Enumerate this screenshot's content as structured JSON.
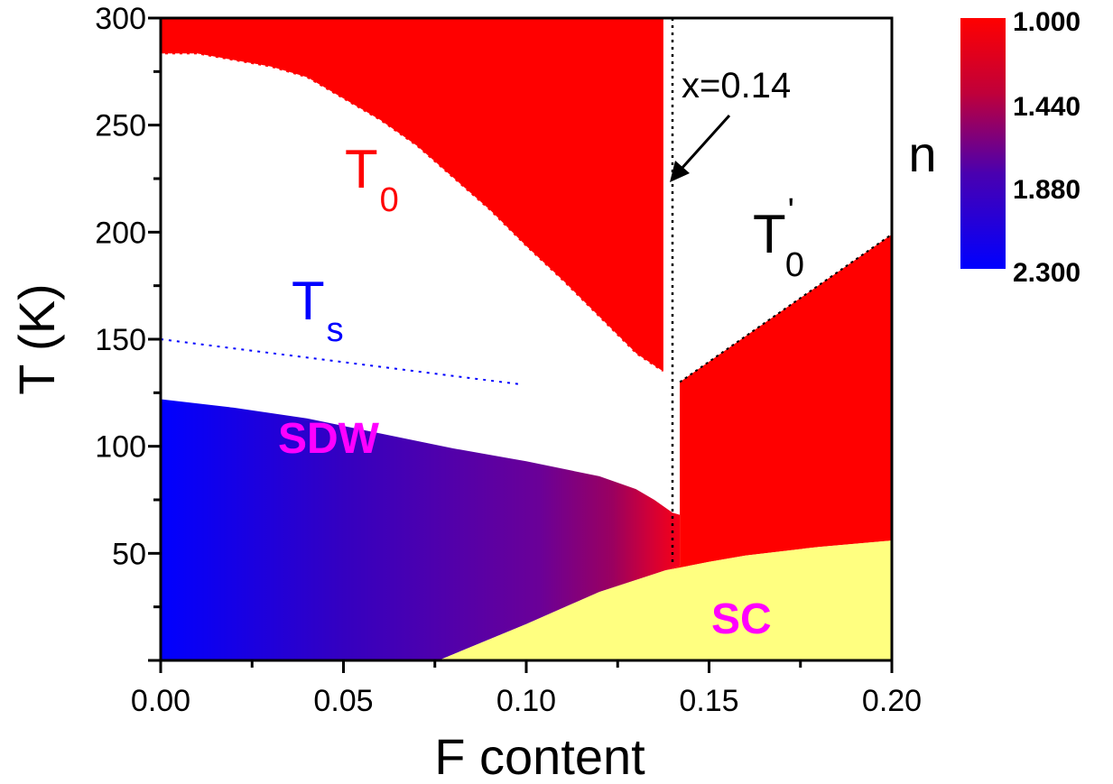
{
  "chart_data": {
    "type": "phase-diagram",
    "xlabel": "F content",
    "ylabel": "T (K)",
    "xlim": [
      0.0,
      0.2
    ],
    "ylim": [
      0,
      300
    ],
    "x_ticks": [
      0.0,
      0.05,
      0.1,
      0.15,
      0.2
    ],
    "x_tick_labels": [
      "0.00",
      "0.05",
      "0.10",
      "0.15",
      "0.20"
    ],
    "y_ticks": [
      50,
      100,
      150,
      200,
      250,
      300
    ],
    "y_tick_labels": [
      "50",
      "100",
      "150",
      "200",
      "250",
      "300"
    ],
    "grid": false,
    "colors": {
      "red": "#ff0000",
      "blue": "#0000ff",
      "purple": "#6a0098",
      "crimson": "#d00038",
      "sc_yellow": "#ffff80",
      "magenta": "#ff00ff",
      "ts_blue": "#0000ff",
      "t0_red": "#ff0000"
    },
    "colorbar": {
      "title": "n",
      "tick_labels": [
        "1.000",
        "1.440",
        "1.880",
        "2.300"
      ],
      "range": [
        1.0,
        2.3
      ],
      "colors_top_to_bottom": [
        "#ff0000",
        "#c0003a",
        "#3a00b8",
        "#0000ff"
      ]
    },
    "boundaries": {
      "t0_curve": [
        [
          0.0,
          283
        ],
        [
          0.01,
          283
        ],
        [
          0.02,
          280
        ],
        [
          0.03,
          277
        ],
        [
          0.04,
          272
        ],
        [
          0.05,
          262
        ],
        [
          0.06,
          252
        ],
        [
          0.07,
          240
        ],
        [
          0.08,
          225
        ],
        [
          0.09,
          210
        ],
        [
          0.1,
          193
        ],
        [
          0.11,
          177
        ],
        [
          0.12,
          160
        ],
        [
          0.13,
          143
        ],
        [
          0.137,
          135
        ]
      ],
      "t0_prime_line": [
        [
          0.142,
          130
        ],
        [
          0.2,
          199
        ]
      ],
      "ts_line": [
        [
          0.0,
          150
        ],
        [
          0.098,
          129
        ]
      ],
      "sdw_upper": [
        [
          0.0,
          122
        ],
        [
          0.02,
          118
        ],
        [
          0.04,
          113
        ],
        [
          0.06,
          106
        ],
        [
          0.08,
          99
        ],
        [
          0.1,
          93
        ],
        [
          0.12,
          86
        ],
        [
          0.13,
          80
        ],
        [
          0.135,
          75
        ],
        [
          0.14,
          69
        ]
      ],
      "sc_upper": [
        [
          0.076,
          0
        ],
        [
          0.1,
          17
        ],
        [
          0.12,
          32
        ],
        [
          0.138,
          42
        ],
        [
          0.15,
          46
        ],
        [
          0.16,
          49
        ],
        [
          0.18,
          53
        ],
        [
          0.2,
          56
        ]
      ],
      "x_critical": 0.14,
      "gap_bottom": [
        [
          0.138,
          67
        ],
        [
          0.142,
          68
        ]
      ]
    },
    "annotations": {
      "t0_label": "T",
      "t0_sub": "0",
      "t0p_label": "T",
      "t0p_sup": "'",
      "t0p_sub": "0",
      "ts_label": "T",
      "ts_sub": "s",
      "sdw_label": "SDW",
      "sc_label": "SC",
      "critical_label": "x=0.14"
    }
  }
}
